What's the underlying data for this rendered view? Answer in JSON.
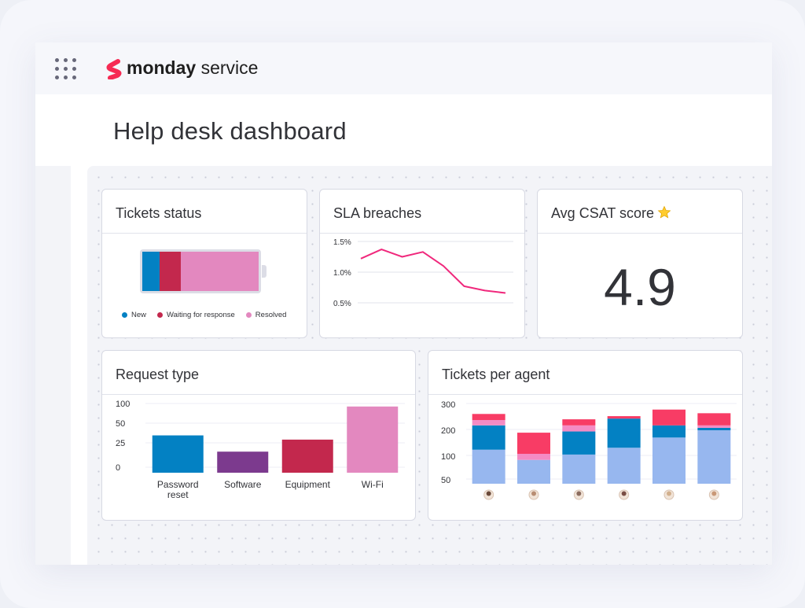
{
  "brand": {
    "name_bold": "monday",
    "name_light": "service"
  },
  "page_title": "Help desk dashboard",
  "colors": {
    "accent": "#f62b54",
    "new": "#0381c3",
    "waiting": "#c3284d",
    "resolved": "#e388bf",
    "software": "#7c3a8e",
    "agent_light": "#97b7ef",
    "agent_pink": "#f54f8f"
  },
  "cards": {
    "tickets_status": {
      "title": "Tickets status",
      "legend": [
        {
          "label": "New",
          "color": "#0381c3",
          "share": 0.15
        },
        {
          "label": "Waiting for response",
          "color": "#c3284d",
          "share": 0.18
        },
        {
          "label": "Resolved",
          "color": "#e388bf",
          "share": 0.67
        }
      ]
    },
    "sla_breaches": {
      "title": "SLA breaches"
    },
    "avg_csat": {
      "title": "Avg CSAT score",
      "icon": "star-icon",
      "value": "4.9"
    },
    "request_type": {
      "title": "Request type"
    },
    "tickets_per_agent": {
      "title": "Tickets per agent"
    }
  },
  "chart_data": [
    {
      "id": "sla",
      "type": "line",
      "yticks": [
        "1.5%",
        "1.0%",
        "0.5%"
      ],
      "ylim": [
        0.5,
        1.5
      ],
      "x": [
        1,
        2,
        3,
        4,
        5,
        6,
        7,
        8
      ],
      "values": [
        1.22,
        1.37,
        1.25,
        1.33,
        1.1,
        0.77,
        0.7,
        0.66
      ],
      "color": "#f0287c",
      "grid": true
    },
    {
      "id": "request",
      "type": "bar",
      "categories": [
        "Password reset",
        "Software",
        "Equipment",
        "Wi-Fi"
      ],
      "category_lines": [
        [
          "Password",
          "reset"
        ],
        [
          "Software"
        ],
        [
          "Equipment"
        ],
        [
          "Wi-Fi"
        ]
      ],
      "values": [
        62,
        35,
        55,
        110
      ],
      "colors": [
        "#0381c3",
        "#7c3a8e",
        "#c3284d",
        "#e388bf"
      ],
      "yticks": [
        "100",
        "50",
        "25",
        "0"
      ],
      "ylim": [
        0,
        115
      ],
      "grid": true
    },
    {
      "id": "agents",
      "type": "bar",
      "stacked": true,
      "yticks": [
        "300",
        "200",
        "100",
        "50"
      ],
      "ylim": [
        0,
        330
      ],
      "categories": [
        "agent-1",
        "agent-2",
        "agent-3",
        "agent-4",
        "agent-5",
        "agent-6"
      ],
      "series": [
        {
          "values": [
            140,
            98,
            120,
            148,
            190,
            220
          ],
          "color": "#97b7ef"
        },
        {
          "values": [
            100,
            0,
            95,
            120,
            50,
            10
          ],
          "color": "#0381c3"
        },
        {
          "values": [
            22,
            25,
            25,
            0,
            0,
            10
          ],
          "color": "#f48bc4"
        },
        {
          "values": [
            25,
            87,
            25,
            10,
            65,
            50
          ],
          "color": "#f83c65"
        }
      ],
      "grid": true
    }
  ]
}
